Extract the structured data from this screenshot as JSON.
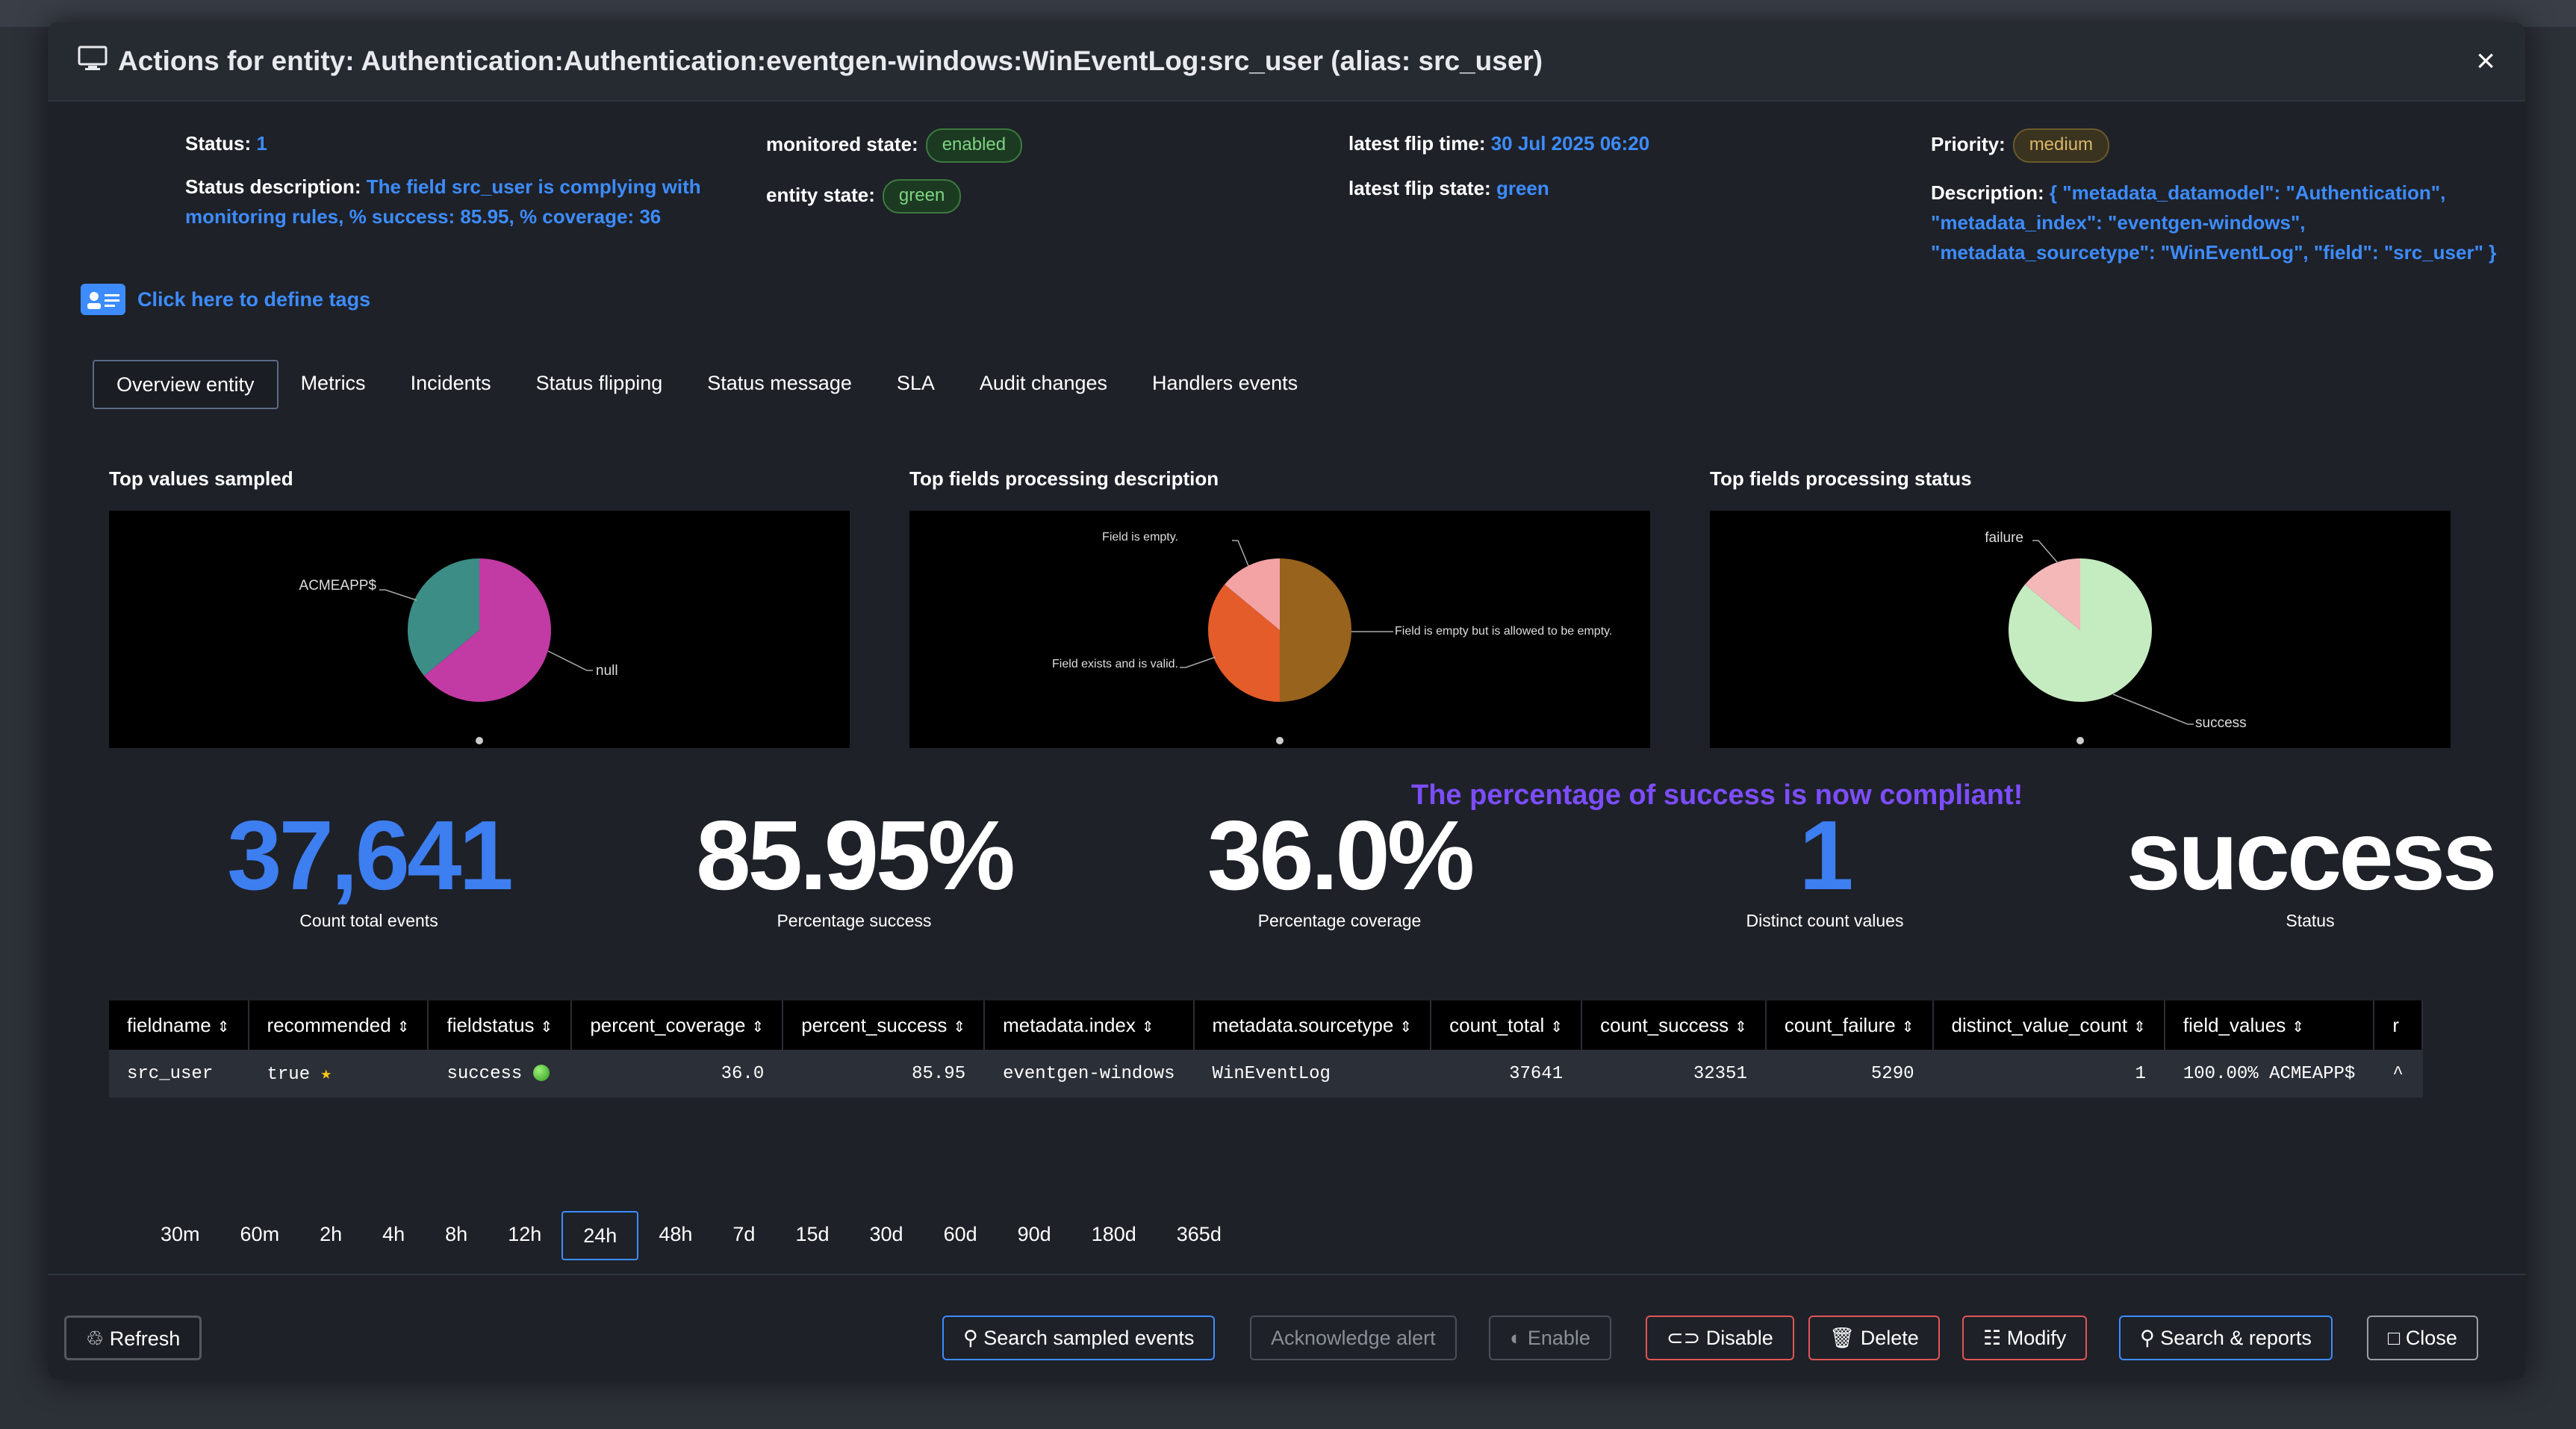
{
  "modal": {
    "title": "Actions for entity: Authentication:Authentication:eventgen-windows:WinEventLog:src_user (alias: src_user)",
    "close": "×"
  },
  "info": {
    "status_label": "Status:",
    "status_value": "1",
    "status_desc_label": "Status description:",
    "status_desc_value": "The field src_user is complying with monitoring rules, % success: 85.95, % coverage: 36",
    "monitored_label": "monitored state:",
    "monitored_value": "enabled",
    "entity_label": "entity state:",
    "entity_value": "green",
    "flip_time_label": "latest flip time:",
    "flip_time_value": "30 Jul 2025 06:20",
    "flip_state_label": "latest flip state:",
    "flip_state_value": "green",
    "priority_label": "Priority:",
    "priority_value": "medium",
    "description_label": "Description:",
    "description_value": "{ \"metadata_datamodel\": \"Authentication\", \"metadata_index\": \"eventgen-windows\", \"metadata_sourcetype\": \"WinEventLog\", \"field\": \"src_user\" }"
  },
  "tags_link": "Click here to define tags",
  "tabs": [
    "Overview entity",
    "Metrics",
    "Incidents",
    "Status flipping",
    "Status message",
    "SLA",
    "Audit changes",
    "Handlers events"
  ],
  "charts": {
    "top_values_title": "Top values sampled",
    "desc_title": "Top fields processing description",
    "status_title": "Top fields processing status"
  },
  "chart_data": [
    {
      "type": "pie",
      "title": "Top values sampled",
      "labels": [
        "null",
        "ACMEAPP$"
      ],
      "values": [
        64,
        36
      ],
      "colors": [
        "#c23aa3",
        "#3c8d86"
      ]
    },
    {
      "type": "pie",
      "title": "Top fields processing description",
      "labels": [
        "Field is empty but is allowed to be empty.",
        "Field exists and is valid.",
        "Field is empty."
      ],
      "values": [
        50,
        36,
        14
      ],
      "colors": [
        "#97631d",
        "#e35c2a",
        "#f3a3a3"
      ]
    },
    {
      "type": "pie",
      "title": "Top fields processing status",
      "labels": [
        "success",
        "failure"
      ],
      "values": [
        86,
        14
      ],
      "colors": [
        "#c5ebc0",
        "#f4b8b8"
      ]
    }
  ],
  "compliant_msg": "The percentage of success is now compliant!",
  "kpis": [
    {
      "value": "37,641",
      "label": "Count total events",
      "color": "#3d7ef0"
    },
    {
      "value": "85.95%",
      "label": "Percentage success",
      "color": "#ffffff"
    },
    {
      "value": "36.0%",
      "label": "Percentage coverage",
      "color": "#ffffff"
    },
    {
      "value": "1",
      "label": "Distinct count values",
      "color": "#3d7ef0"
    },
    {
      "value": "success",
      "label": "Status",
      "color": "#ffffff"
    }
  ],
  "table": {
    "headers": [
      "fieldname",
      "recommended",
      "fieldstatus",
      "percent_coverage",
      "percent_success",
      "metadata.index",
      "metadata.sourcetype",
      "count_total",
      "count_success",
      "count_failure",
      "distinct_value_count",
      "field_values",
      "r"
    ],
    "row": [
      "src_user",
      "true",
      "success",
      "36.0",
      "85.95",
      "eventgen-windows",
      "WinEventLog",
      "37641",
      "32351",
      "5290",
      "1",
      "100.00% ACMEAPP$",
      "^"
    ]
  },
  "times": [
    "30m",
    "60m",
    "2h",
    "4h",
    "8h",
    "12h",
    "24h",
    "48h",
    "7d",
    "15d",
    "30d",
    "60d",
    "90d",
    "180d",
    "365d"
  ],
  "active_time": "24h",
  "buttons": {
    "refresh": "Refresh",
    "search_sampled": "Search sampled events",
    "ack": "Acknowledge alert",
    "enable": "Enable",
    "disable": "Disable",
    "delete": "Delete",
    "modify": "Modify",
    "search_reports": "Search & reports",
    "close": "Close"
  }
}
